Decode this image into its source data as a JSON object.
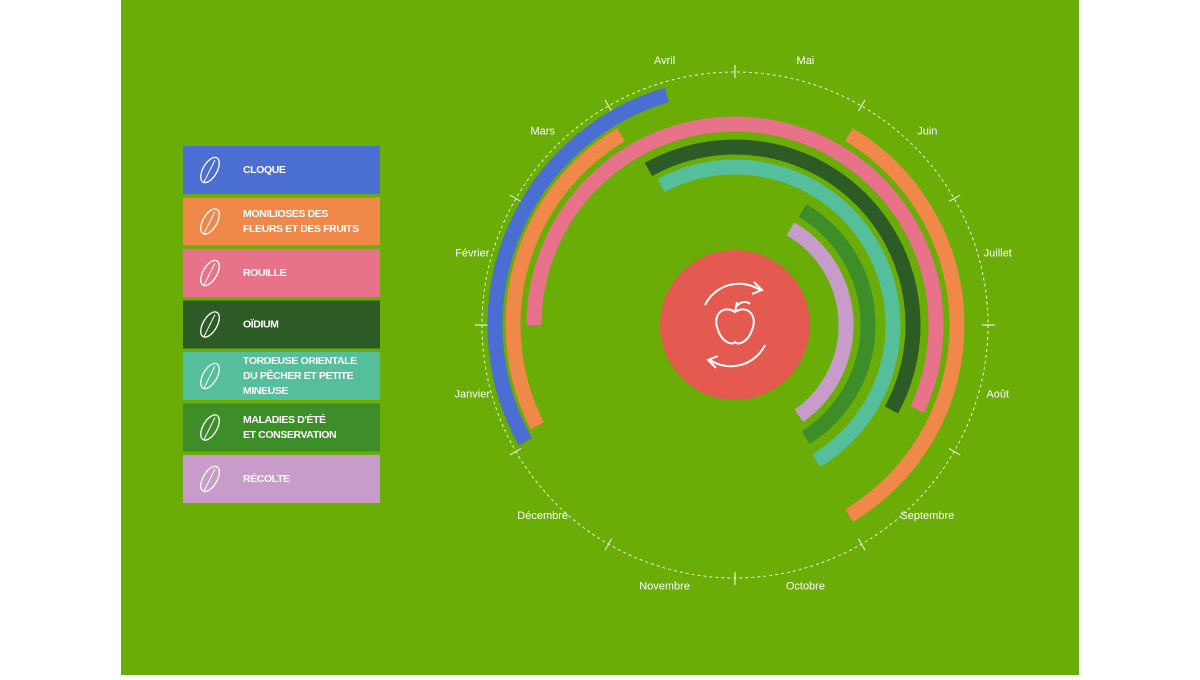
{
  "months": [
    "Janvier",
    "Février",
    "Mars",
    "Avril",
    "Mai",
    "Juin",
    "Juillet",
    "Août",
    "Septembre",
    "Octobre",
    "Novembre",
    "Décembre"
  ],
  "items": [
    {
      "label": [
        "CLOQUE"
      ],
      "color": "#4a6ed2",
      "periods": [
        [
          0.03,
          3.45
        ]
      ]
    },
    {
      "label": [
        "MONILIOSES DES",
        "FLEURS ET DES FRUITS"
      ],
      "color": "#f0884a",
      "periods": [
        [
          0.1,
          2.97
        ],
        [
          5.03,
          8.97
        ]
      ]
    },
    {
      "label": [
        "ROUILLE"
      ],
      "color": "#e9728b",
      "periods": [
        [
          1.0,
          7.83
        ]
      ]
    },
    {
      "label": [
        "OÏDIUM"
      ],
      "color": "#2d5b26",
      "periods": [
        [
          3.03,
          7.95
        ]
      ]
    },
    {
      "label": [
        "TORDEUSE ORIENTALE",
        "DU PÊCHER ET PETITE",
        "MINEUSE"
      ],
      "color": "#55be9b",
      "periods": [
        [
          3.07,
          8.97
        ]
      ]
    },
    {
      "label": [
        "MALADIES D'ÉTÉ",
        "ET CONSERVATION"
      ],
      "color": "#3d8d28",
      "periods": [
        [
          5.02,
          8.93
        ]
      ]
    },
    {
      "label": [
        "RÉCOLTE"
      ],
      "color": "#c79bca",
      "periods": [
        [
          5.0,
          8.83
        ]
      ]
    }
  ]
}
